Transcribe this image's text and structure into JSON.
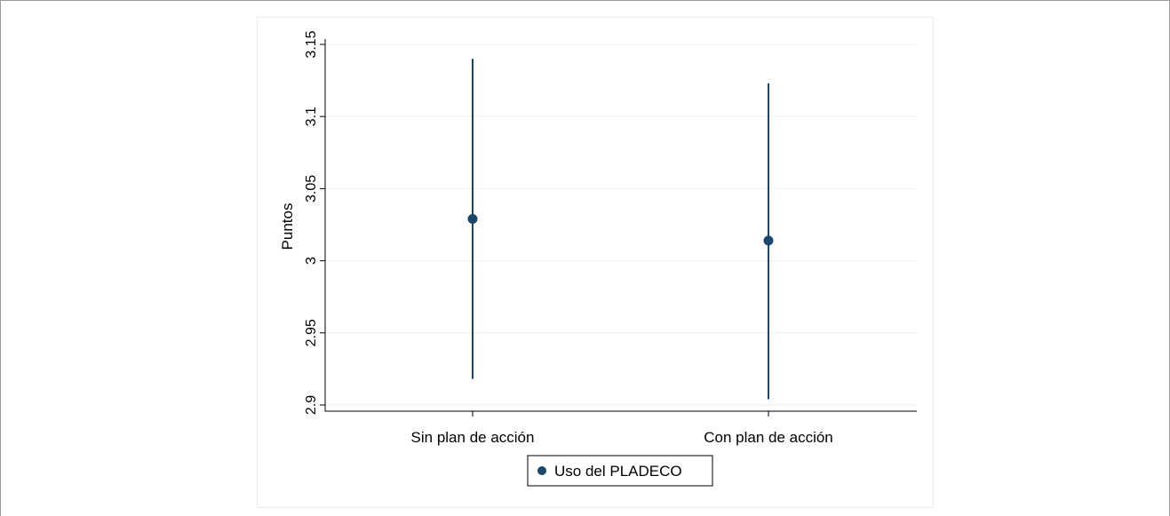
{
  "chart_data": {
    "type": "scatter",
    "categories": [
      "Sin plan de acción",
      "Con plan de acción"
    ],
    "ylabel": "Puntos",
    "ylim": [
      2.9,
      3.15
    ],
    "yticks": [
      "2.9",
      "2.95",
      "3",
      "3.05",
      "3.1",
      "3.15"
    ],
    "grid": true,
    "legend_position": "bottom",
    "series": [
      {
        "name": "Uso del PLADECO",
        "values": [
          3.029,
          3.014
        ],
        "ci_low": [
          2.918,
          2.904
        ],
        "ci_high": [
          3.14,
          3.123
        ]
      }
    ],
    "colors": {
      "series": "#1a476f",
      "grid": "#eaf2f3",
      "axis": "#000000"
    }
  }
}
